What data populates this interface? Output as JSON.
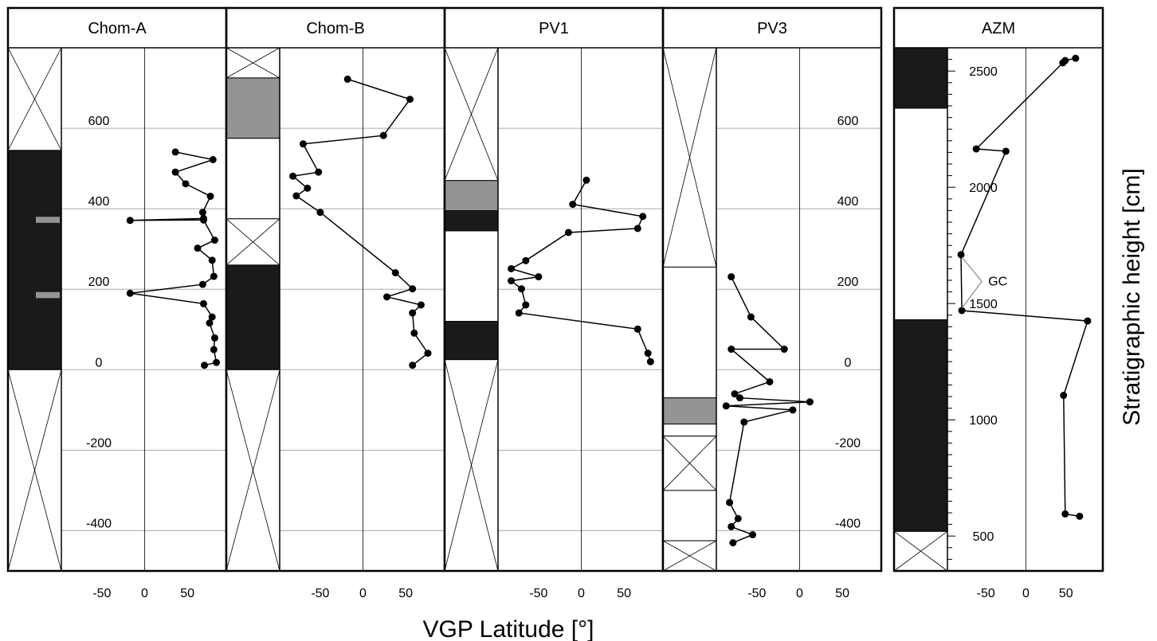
{
  "x_axis_label": "VGP Latitude [°]",
  "y_axis_label": "Stratigraphic height [cm]",
  "x_ticks": [
    -50,
    0,
    50
  ],
  "colors": {
    "normal": "#1a1a1a",
    "transitional": "#949494",
    "line": "#000000",
    "grid": "#aaaaaa"
  },
  "chart_data": [
    {
      "type": "line",
      "title": "Chom-A",
      "y_ticks": [
        600,
        400,
        200,
        0,
        -200,
        -400
      ],
      "ylim": [
        -500,
        800
      ],
      "xlim": [
        -90,
        90
      ],
      "polarity": [
        {
          "from": 545,
          "to": 800,
          "state": "no-data"
        },
        {
          "from": 0,
          "to": 545,
          "state": "normal"
        },
        {
          "from": 365,
          "to": 380,
          "state": "transitional"
        },
        {
          "from": 178,
          "to": 193,
          "state": "transitional"
        },
        {
          "from": -500,
          "to": 0,
          "state": "no-data"
        }
      ],
      "points": [
        [
          36,
          541
        ],
        [
          80,
          522
        ],
        [
          36,
          491
        ],
        [
          48,
          462
        ],
        [
          77,
          431
        ],
        [
          68,
          391
        ],
        [
          69,
          376
        ],
        [
          -17,
          371
        ],
        [
          69,
          372
        ],
        [
          82,
          322
        ],
        [
          62,
          302
        ],
        [
          79,
          272
        ],
        [
          81,
          232
        ],
        [
          68,
          212
        ],
        [
          -17,
          190
        ],
        [
          69,
          164
        ],
        [
          79,
          131
        ],
        [
          76,
          116
        ],
        [
          82,
          79
        ],
        [
          81,
          50
        ],
        [
          84,
          18
        ],
        [
          70,
          11
        ]
      ]
    },
    {
      "type": "line",
      "title": "Chom-B",
      "y_ticks": [],
      "ylim": [
        -500,
        800
      ],
      "xlim": [
        -90,
        90
      ],
      "polarity": [
        {
          "from": 725,
          "to": 800,
          "state": "no-data"
        },
        {
          "from": 575,
          "to": 725,
          "state": "transitional"
        },
        {
          "from": 375,
          "to": 575,
          "state": "normal-white"
        },
        {
          "from": 260,
          "to": 375,
          "state": "no-data"
        },
        {
          "from": 0,
          "to": 260,
          "state": "normal"
        },
        {
          "from": -500,
          "to": 0,
          "state": "no-data"
        }
      ],
      "points": [
        [
          -18,
          722
        ],
        [
          55,
          672
        ],
        [
          24,
          582
        ],
        [
          -70,
          561
        ],
        [
          -52,
          491
        ],
        [
          -82,
          481
        ],
        [
          -65,
          451
        ],
        [
          -78,
          432
        ],
        [
          -50,
          391
        ],
        [
          38,
          241
        ],
        [
          58,
          201
        ],
        [
          28,
          181
        ],
        [
          68,
          161
        ],
        [
          58,
          141
        ],
        [
          60,
          91
        ],
        [
          76,
          41
        ],
        [
          58,
          11
        ]
      ]
    },
    {
      "type": "line",
      "title": "PV1",
      "y_ticks": [],
      "ylim": [
        -500,
        800
      ],
      "xlim": [
        -90,
        90
      ],
      "polarity": [
        {
          "from": 470,
          "to": 800,
          "state": "no-data"
        },
        {
          "from": 395,
          "to": 470,
          "state": "transitional"
        },
        {
          "from": 345,
          "to": 395,
          "state": "normal"
        },
        {
          "from": 120,
          "to": 345,
          "state": "normal-white"
        },
        {
          "from": 25,
          "to": 120,
          "state": "normal"
        },
        {
          "from": -500,
          "to": 25,
          "state": "no-data"
        }
      ],
      "points": [
        [
          6,
          471
        ],
        [
          -10,
          411
        ],
        [
          72,
          381
        ],
        [
          66,
          351
        ],
        [
          -15,
          341
        ],
        [
          -65,
          271
        ],
        [
          -82,
          251
        ],
        [
          -50,
          231
        ],
        [
          -82,
          221
        ],
        [
          -70,
          201
        ],
        [
          -65,
          161
        ],
        [
          -73,
          141
        ],
        [
          66,
          101
        ],
        [
          78,
          41
        ],
        [
          81,
          20
        ]
      ]
    },
    {
      "type": "line",
      "title": "PV3",
      "y_ticks": [
        600,
        400,
        200,
        0,
        -200,
        -400
      ],
      "ylim": [
        -500,
        800
      ],
      "xlim": [
        -90,
        90
      ],
      "polarity": [
        {
          "from": 255,
          "to": 800,
          "state": "no-data"
        },
        {
          "from": -70,
          "to": 255,
          "state": "normal-white"
        },
        {
          "from": -135,
          "to": -70,
          "state": "transitional"
        },
        {
          "from": -165,
          "to": -135,
          "state": "normal-white"
        },
        {
          "from": -300,
          "to": -165,
          "state": "no-data"
        },
        {
          "from": -425,
          "to": -300,
          "state": "normal-white"
        },
        {
          "from": -500,
          "to": -425,
          "state": "no-data"
        }
      ],
      "points": [
        [
          -80,
          231
        ],
        [
          -57,
          131
        ],
        [
          -18,
          51
        ],
        [
          -80,
          51
        ],
        [
          -35,
          -30
        ],
        [
          -76,
          -60
        ],
        [
          -70,
          -70
        ],
        [
          12,
          -80
        ],
        [
          -86,
          -90
        ],
        [
          -8,
          -100
        ],
        [
          -65,
          -130
        ],
        [
          -82,
          -330
        ],
        [
          -72,
          -370
        ],
        [
          -80,
          -390
        ],
        [
          -55,
          -410
        ],
        [
          -78,
          -430
        ]
      ]
    },
    {
      "type": "line",
      "title": "AZM",
      "y_ticks": [
        2500,
        2000,
        1500,
        1000,
        500
      ],
      "ylim": [
        350,
        2600
      ],
      "xlim": [
        -90,
        90
      ],
      "polarity": [
        {
          "from": 2340,
          "to": 2600,
          "state": "normal"
        },
        {
          "from": 1430,
          "to": 2340,
          "state": "normal-white"
        },
        {
          "from": 520,
          "to": 1430,
          "state": "normal"
        },
        {
          "from": 350,
          "to": 520,
          "state": "no-data"
        }
      ],
      "points": [
        [
          62,
          2555
        ],
        [
          49,
          2545
        ],
        [
          46,
          2535
        ],
        [
          -62,
          2165
        ],
        [
          -25,
          2155
        ],
        [
          -81,
          1710
        ],
        [
          -80,
          1470
        ],
        [
          77,
          1425
        ],
        [
          47,
          1105
        ],
        [
          49,
          595
        ],
        [
          67,
          585
        ]
      ],
      "annotation": "GC"
    }
  ]
}
